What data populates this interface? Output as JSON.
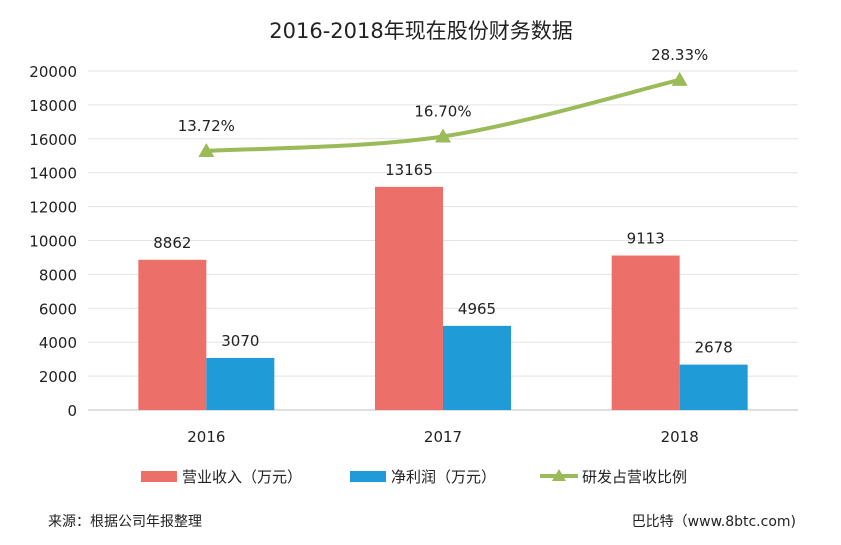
{
  "chart_data": {
    "type": "bar",
    "title": "2016-2018年现在股份财务数据",
    "categories": [
      "2016",
      "2017",
      "2018"
    ],
    "ylim": [
      0,
      20000
    ],
    "yticks": [
      0,
      2000,
      4000,
      6000,
      8000,
      10000,
      12000,
      14000,
      16000,
      18000,
      20000
    ],
    "grid": true,
    "legend_position": "bottom",
    "series": [
      {
        "name": "营业收入（万元）",
        "type": "bar",
        "color": "#ED6F69",
        "values": [
          8862,
          13165,
          9113
        ],
        "labels": [
          "8862",
          "13165",
          "9113"
        ]
      },
      {
        "name": "净利润（万元）",
        "type": "bar",
        "color": "#1F9BD7",
        "values": [
          3070,
          4965,
          2678
        ],
        "labels": [
          "3070",
          "4965",
          "2678"
        ]
      },
      {
        "name": "研发占营收比例",
        "type": "line",
        "axis": "secondary-hidden",
        "color": "#9BBB59",
        "marker": "triangle",
        "values": [
          13.72,
          16.7,
          28.33
        ],
        "labels": [
          "13.72%",
          "16.70%",
          "28.33%"
        ]
      }
    ]
  },
  "footer": {
    "source": "来源：根据公司年报整理",
    "credit": "巴比特（www.8btc.com)"
  }
}
